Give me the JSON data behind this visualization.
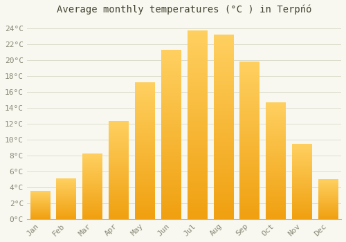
{
  "title": "Average monthly temperatures (°C ) in Terpńó",
  "months": [
    "Jan",
    "Feb",
    "Mar",
    "Apr",
    "May",
    "Jun",
    "Jul",
    "Aug",
    "Sep",
    "Oct",
    "Nov",
    "Dec"
  ],
  "values": [
    3.5,
    5.1,
    8.2,
    12.3,
    17.2,
    21.3,
    23.7,
    23.2,
    19.8,
    14.7,
    9.4,
    5.0
  ],
  "bar_color": "#FFA500",
  "bar_color_light": "#FFD080",
  "background_color": "#F8F8F0",
  "grid_color": "#DDDDCC",
  "text_color": "#888877",
  "ylim": [
    0,
    25
  ],
  "yticks": [
    0,
    2,
    4,
    6,
    8,
    10,
    12,
    14,
    16,
    18,
    20,
    22,
    24
  ],
  "title_fontsize": 10,
  "tick_fontsize": 8,
  "font_family": "monospace"
}
